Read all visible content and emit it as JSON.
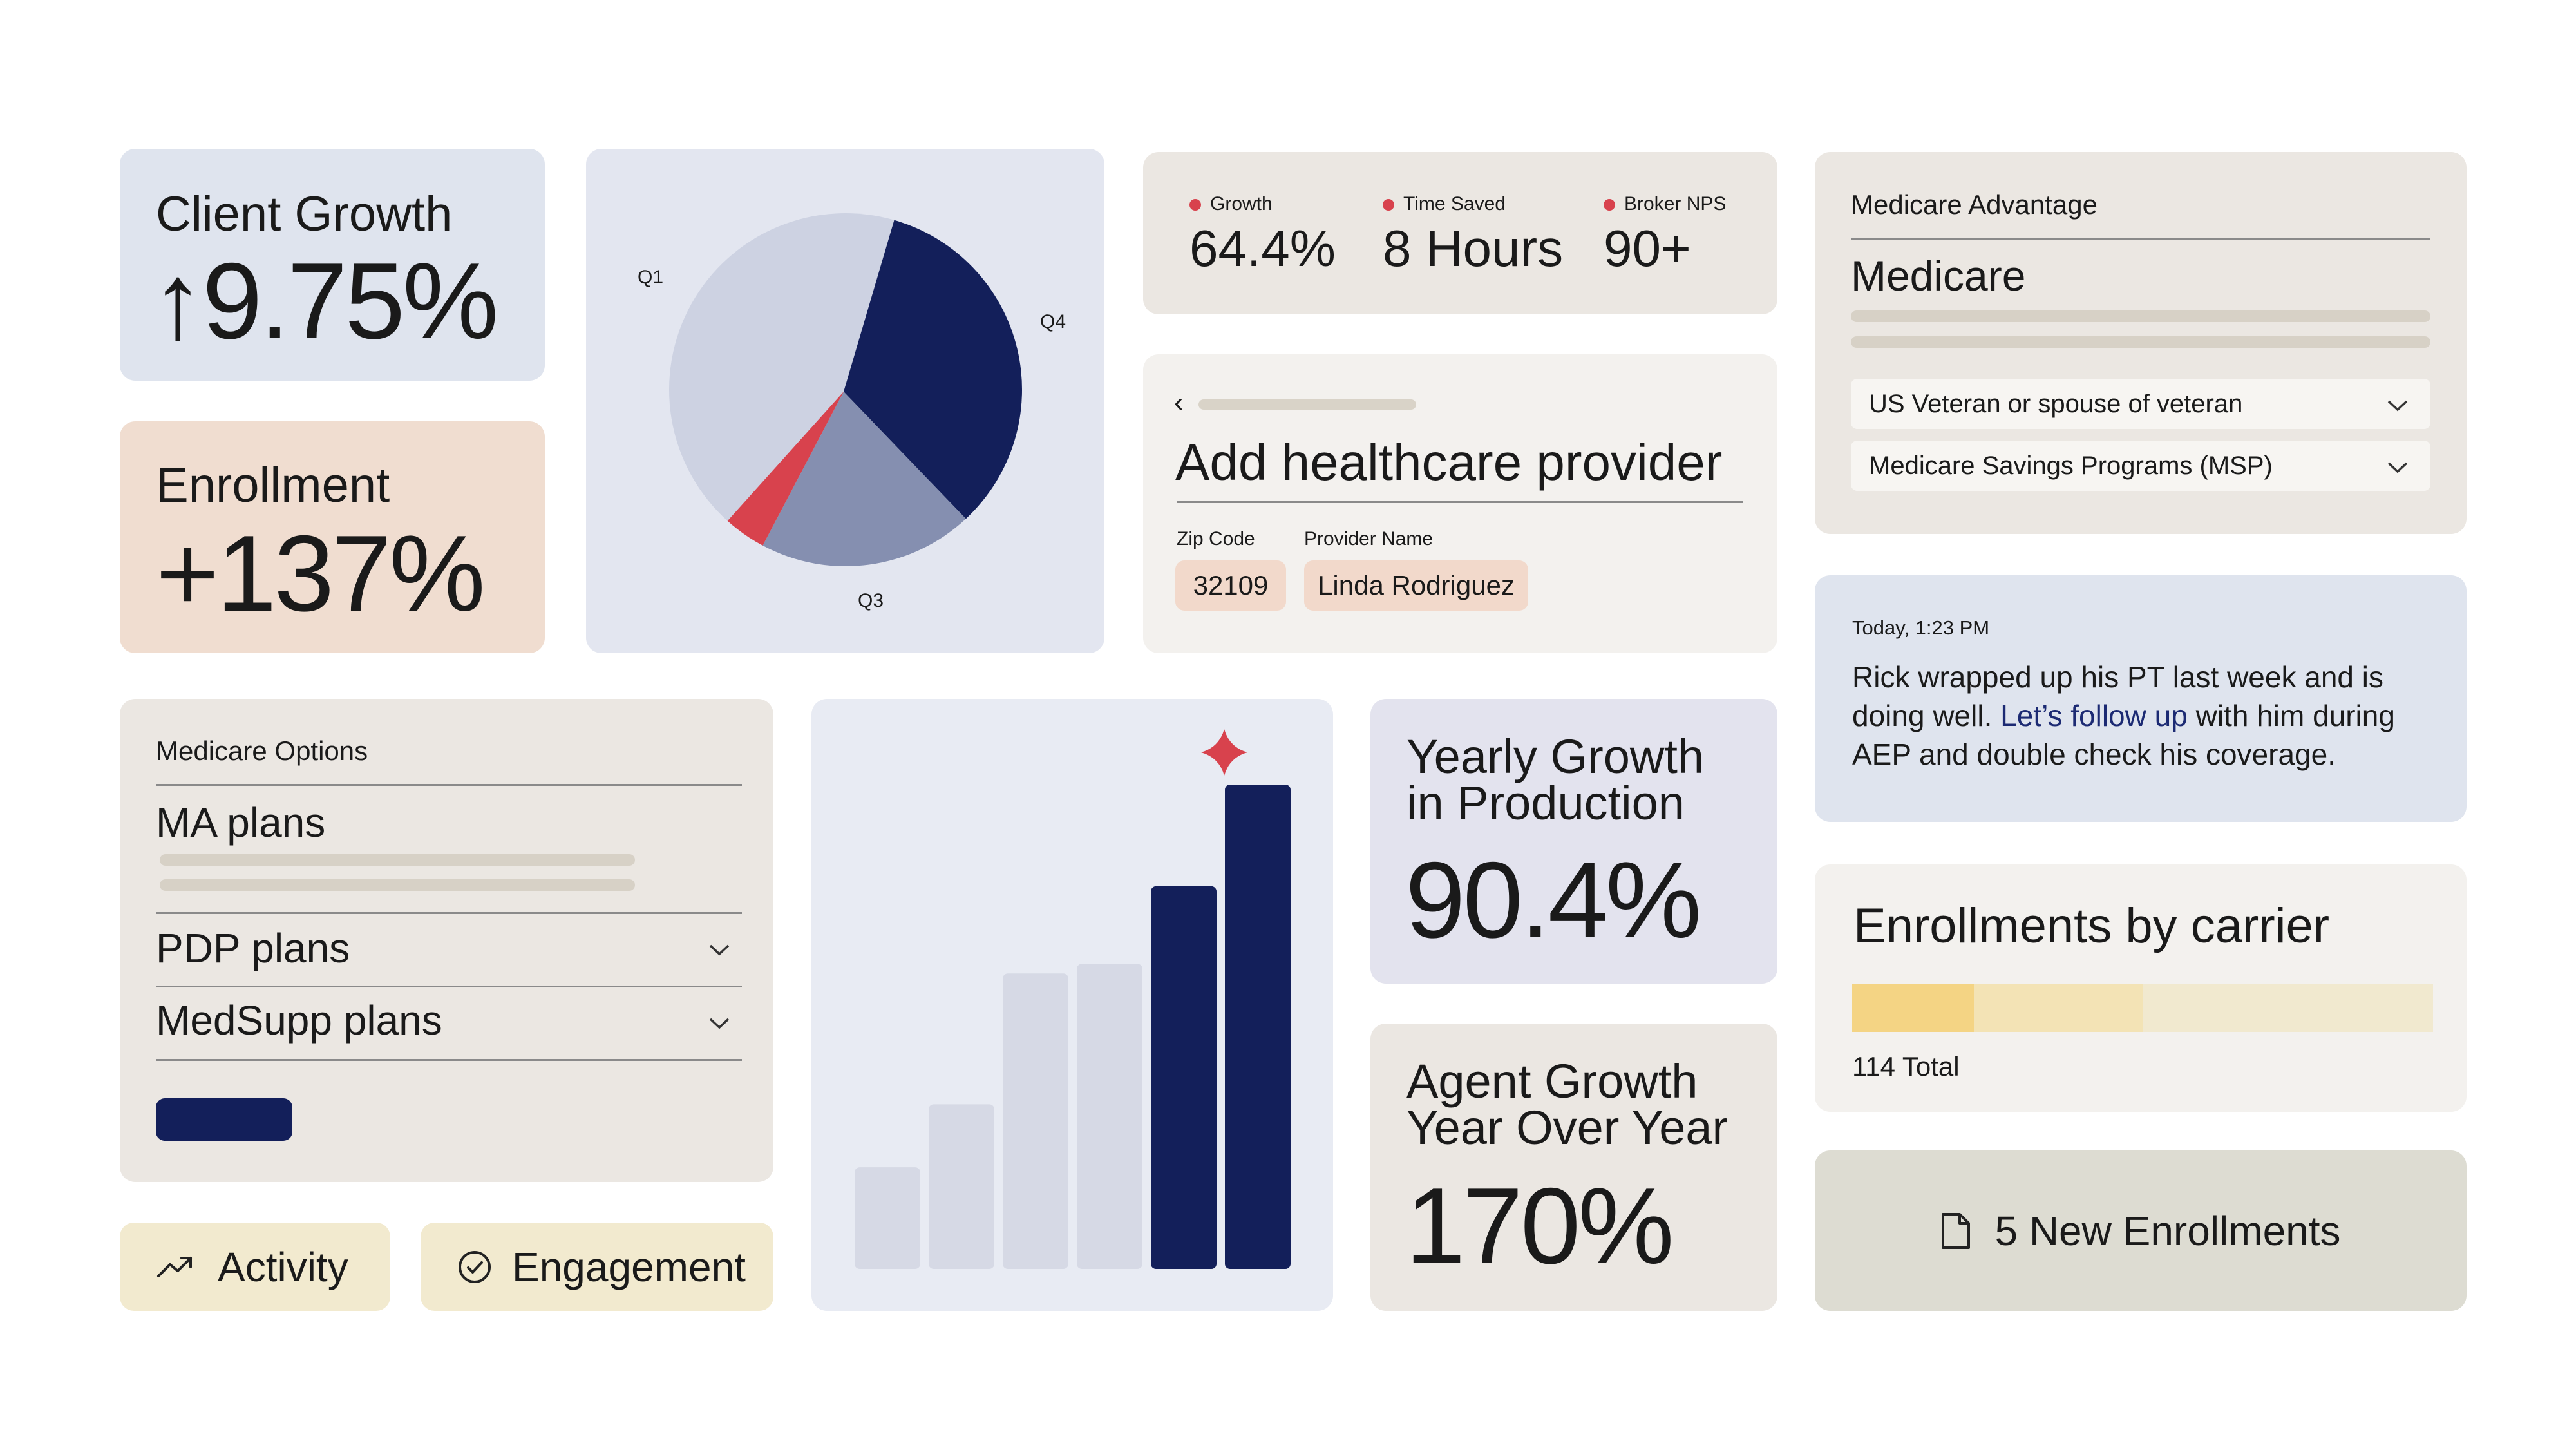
{
  "client_growth": {
    "title": "Client Growth",
    "value": "↑9.75%"
  },
  "enrollment": {
    "title": "Enrollment",
    "value": "+137%"
  },
  "pie": {
    "labels": {
      "q1": "Q1",
      "q4": "Q4",
      "q3": "Q3"
    },
    "colors": {
      "q1": "#cdd2e2",
      "q4": "#131f5a",
      "q3": "#858fb0",
      "red": "#d8424d"
    }
  },
  "stats": [
    {
      "label": "Growth",
      "value": "64.4%"
    },
    {
      "label": "Time Saved",
      "value": "8 Hours"
    },
    {
      "label": "Broker NPS",
      "value": "90+"
    }
  ],
  "provider_form": {
    "back_glyph": "‹",
    "title": "Add healthcare provider",
    "zip_label": "Zip Code",
    "zip_value": "32109",
    "name_label": "Provider Name",
    "name_value": "Linda Rodriguez"
  },
  "medicare_card": {
    "header": "Medicare Advantage",
    "title": "Medicare",
    "select1": "US Veteran or spouse of veteran",
    "select2": "Medicare Savings Programs (MSP)"
  },
  "note": {
    "timestamp": "Today, 1:23 PM",
    "text_before": "Rick wrapped up his PT last week and is doing well. ",
    "link": "Let’s follow up",
    "text_after": " with him during AEP and double check his coverage."
  },
  "medicare_options": {
    "header": "Medicare Options",
    "ma": "MA plans",
    "pdp": "PDP plans",
    "medsupp": "MedSupp plans"
  },
  "bar_chart": {
    "values": [
      0.21,
      0.34,
      0.61,
      0.63,
      0.79,
      1.0
    ],
    "highlight": [
      false,
      false,
      false,
      false,
      true,
      true
    ],
    "colors": {
      "muted": "#d6d9e5",
      "accent": "#131f5a",
      "sparkle": "#d8424d"
    }
  },
  "yearly_growth": {
    "title_line1": "Yearly Growth",
    "title_line2": "in Production",
    "value": "90.4%"
  },
  "agent_growth": {
    "title_line1": "Agent Growth",
    "title_line2": "Year Over Year",
    "value": "170%"
  },
  "enrollments_by_carrier": {
    "title": "Enrollments by carrier",
    "total": "114 Total",
    "segments": [
      0.21,
      0.29,
      0.5
    ],
    "colors": [
      "#f4d484",
      "#f3e3b5",
      "#f1e9cf"
    ]
  },
  "new_enrollments": {
    "label": "5 New Enrollments"
  },
  "activity_button": {
    "label": "Activity"
  },
  "engagement_button": {
    "label": "Engagement"
  }
}
